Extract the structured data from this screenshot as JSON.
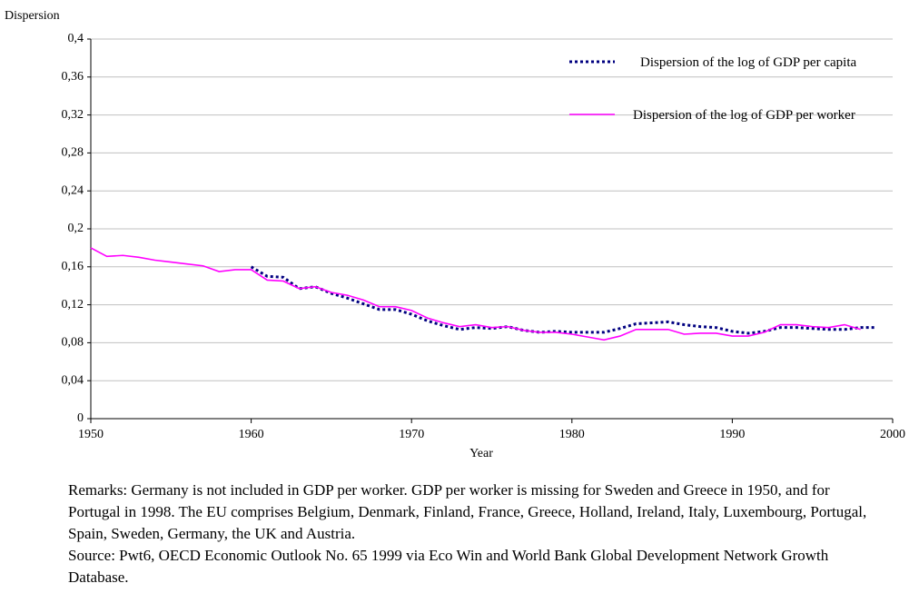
{
  "chart_data": {
    "type": "line",
    "y_label": "Dispersion",
    "x_label": "Year",
    "x": [
      1950,
      1951,
      1952,
      1953,
      1954,
      1955,
      1956,
      1957,
      1958,
      1959,
      1960,
      1961,
      1962,
      1963,
      1964,
      1965,
      1966,
      1967,
      1968,
      1969,
      1970,
      1971,
      1972,
      1973,
      1974,
      1975,
      1976,
      1977,
      1978,
      1979,
      1980,
      1981,
      1982,
      1983,
      1984,
      1985,
      1986,
      1987,
      1988,
      1989,
      1990,
      1991,
      1992,
      1993,
      1994,
      1995,
      1996,
      1997,
      1998,
      1999
    ],
    "series": [
      {
        "name": "Dispersion of the log of GDP per capita",
        "color": "#000080",
        "dash": true,
        "values": [
          null,
          null,
          null,
          null,
          null,
          null,
          null,
          null,
          null,
          null,
          0.16,
          0.15,
          0.149,
          0.137,
          0.139,
          0.132,
          0.127,
          0.121,
          0.115,
          0.115,
          0.11,
          0.103,
          0.098,
          0.094,
          0.096,
          0.095,
          0.097,
          0.093,
          0.091,
          0.092,
          0.091,
          0.091,
          0.091,
          0.095,
          0.1,
          0.101,
          0.102,
          0.099,
          0.097,
          0.096,
          0.092,
          0.09,
          0.092,
          0.096,
          0.096,
          0.095,
          0.094,
          0.094,
          0.096,
          0.096
        ]
      },
      {
        "name": "Dispersion of the log of GDP per worker",
        "color": "#ff00ff",
        "dash": false,
        "values": [
          0.18,
          0.171,
          0.172,
          0.17,
          0.167,
          0.165,
          0.163,
          0.161,
          0.155,
          0.157,
          0.157,
          0.146,
          0.145,
          0.137,
          0.139,
          0.133,
          0.13,
          0.125,
          0.118,
          0.118,
          0.114,
          0.106,
          0.101,
          0.097,
          0.099,
          0.096,
          0.097,
          0.093,
          0.091,
          0.091,
          0.089,
          0.086,
          0.083,
          0.087,
          0.094,
          0.094,
          0.094,
          0.089,
          0.09,
          0.09,
          0.087,
          0.087,
          0.091,
          0.099,
          0.099,
          0.097,
          0.096,
          0.099,
          0.094,
          null
        ]
      }
    ],
    "xlim": [
      1950,
      2000
    ],
    "xticks": [
      1950,
      1960,
      1970,
      1980,
      1990,
      2000
    ],
    "ylim": [
      0,
      0.4
    ],
    "yticks": [
      0,
      {
        "value": 0.04,
        "label": "0,04"
      },
      {
        "value": 0.08,
        "label": "0,08"
      },
      {
        "value": 0.12,
        "label": "0,12"
      },
      {
        "value": 0.16,
        "label": "0,16"
      },
      {
        "value": 0.2,
        "label": "0,2"
      },
      {
        "value": 0.24,
        "label": "0,24"
      },
      {
        "value": 0.28,
        "label": "0,28"
      },
      {
        "value": 0.32,
        "label": "0,32"
      },
      {
        "value": 0.36,
        "label": "0,36"
      },
      {
        "value": 0.4,
        "label": "0,4"
      }
    ],
    "grid": true,
    "legend": "top-right",
    "notes": [
      "Remarks: Germany is not included in GDP per worker. GDP per worker is missing for Sweden and Greece in 1950, and for Portugal in 1998. The EU comprises Belgium, Denmark, Finland, France, Greece, Holland, Ireland, Italy, Luxembourg, Portugal, Spain, Sweden, Germany, the UK and Austria.",
      "Source: Pwt6, OECD Economic Outlook No. 65 1999 via Eco Win and World Bank Global Development Network Growth Database."
    ]
  }
}
